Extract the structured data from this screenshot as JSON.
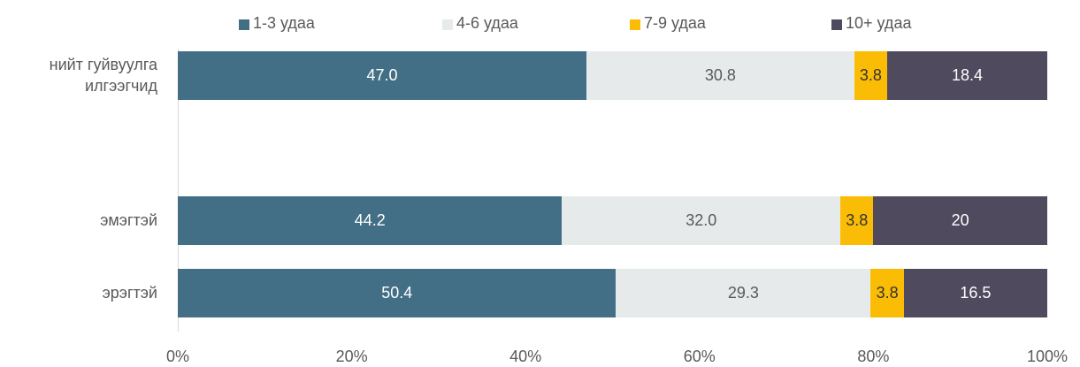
{
  "chart_data": {
    "type": "stacked_bar_horizontal",
    "categories": [
      "нийт гуйвуулга илгээгчид",
      null,
      "эмэгтэй",
      "эрэгтэй"
    ],
    "series": [
      {
        "name": "1-3 удаа",
        "color": "#436f86",
        "values": [
          47.0,
          null,
          44.2,
          50.4
        ],
        "value_labels": [
          "47.0",
          null,
          "44.2",
          "50.4"
        ]
      },
      {
        "name": "4-6 удаа",
        "color": "#e7eaeb",
        "values": [
          30.8,
          null,
          32.0,
          29.3
        ],
        "value_labels": [
          "30.8",
          null,
          "32.0",
          "29.3"
        ]
      },
      {
        "name": "7-9 удаа",
        "color": "#fbbc05",
        "values": [
          3.8,
          null,
          3.8,
          3.8
        ],
        "value_labels": [
          "3.8",
          null,
          "3.8",
          "3.8"
        ]
      },
      {
        "name": "10+ удаа",
        "color": "#4f4a5e",
        "values": [
          18.4,
          null,
          20,
          16.5
        ],
        "value_labels": [
          "18.4",
          null,
          "20",
          "16.5"
        ]
      }
    ],
    "xlim": [
      0,
      100
    ],
    "xticks": [
      {
        "value": 0,
        "label": "0%"
      },
      {
        "value": 20,
        "label": "20%"
      },
      {
        "value": 40,
        "label": "40%"
      },
      {
        "value": 60,
        "label": "60%"
      },
      {
        "value": 80,
        "label": "80%"
      },
      {
        "value": 100,
        "label": "100%"
      }
    ],
    "legend": "top"
  }
}
